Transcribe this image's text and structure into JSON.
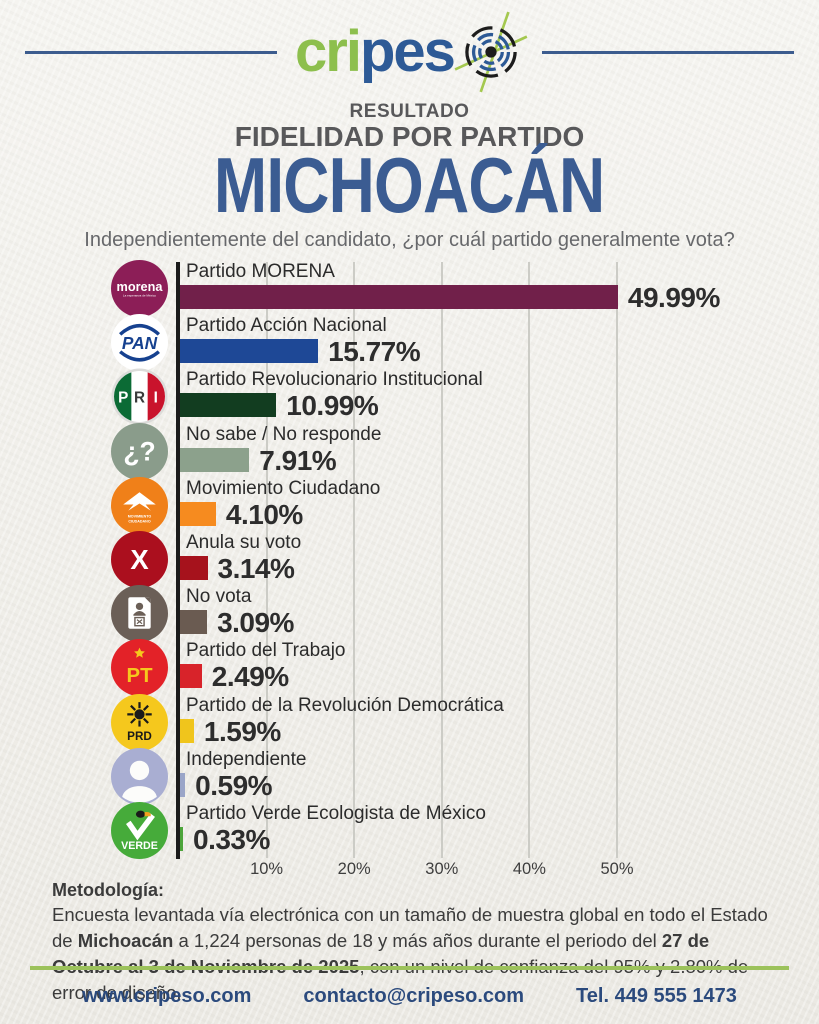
{
  "logo": {
    "part_green": "cri",
    "part_blue": "pes",
    "target_icon": "target-crosshair-icon",
    "accent_green": "#8dbf4d",
    "accent_blue": "#2d5a96"
  },
  "header": {
    "kicker": "RESULTADO",
    "program": "FIDELIDAD POR PARTIDO",
    "region": "MICHOACÁN",
    "question": "Independientemente del candidato, ¿por cuál partido generalmente vota?"
  },
  "chart_data": {
    "type": "bar",
    "orientation": "horizontal",
    "title": "Resultado fidelidad por partido — Michoacán",
    "xlabel": "",
    "ylabel": "",
    "xlim": [
      0,
      50
    ],
    "grid": true,
    "x_tick_labels": [
      "10%",
      "20%",
      "30%",
      "40%",
      "50%"
    ],
    "x_tick_values": [
      10,
      20,
      30,
      40,
      50
    ],
    "categories": [
      "Partido MORENA",
      "Partido Acción Nacional",
      "Partido Revolucionario Institucional",
      "No sabe / No responde",
      "Movimiento Ciudadano",
      "Anula su voto",
      "No vota",
      "Partido del Trabajo",
      "Partido de la Revolución Democrática",
      "Independiente",
      "Partido Verde Ecologista de México"
    ],
    "values": [
      49.99,
      15.77,
      10.99,
      7.91,
      4.1,
      3.14,
      3.09,
      2.49,
      1.59,
      0.59,
      0.33
    ],
    "rows": [
      {
        "label": "Partido MORENA",
        "value": 49.99,
        "value_label": "49.99%",
        "bar_color": "#71204a",
        "icon": "morena",
        "icon_bg": "#8c1e57"
      },
      {
        "label": "Partido Acción Nacional",
        "value": 15.77,
        "value_label": "15.77%",
        "bar_color": "#1e4896",
        "icon": "pan",
        "icon_bg": "#ffffff"
      },
      {
        "label": "Partido Revolucionario Institucional",
        "value": 10.99,
        "value_label": "10.99%",
        "bar_color": "#123d20",
        "icon": "pri",
        "icon_bg": "#ffffff"
      },
      {
        "label": "No sabe / No responde",
        "value": 7.91,
        "value_label": "7.91%",
        "bar_color": "#8ca18c",
        "icon": "nosabe",
        "icon_bg": "#8a9c8b"
      },
      {
        "label": "Movimiento Ciudadano",
        "value": 4.1,
        "value_label": "4.10%",
        "bar_color": "#f68b1f",
        "icon": "mc",
        "icon_bg": "#f08019"
      },
      {
        "label": "Anula su voto",
        "value": 3.14,
        "value_label": "3.14%",
        "bar_color": "#a6121c",
        "icon": "anula",
        "icon_bg": "#ab0f1e"
      },
      {
        "label": "No vota",
        "value": 3.09,
        "value_label": "3.09%",
        "bar_color": "#6a5b51",
        "icon": "novota",
        "icon_bg": "#6b5f57"
      },
      {
        "label": "Partido del Trabajo",
        "value": 2.49,
        "value_label": "2.49%",
        "bar_color": "#d8232a",
        "icon": "pt",
        "icon_bg": "#e32228"
      },
      {
        "label": "Partido de la Revolución Democrática",
        "value": 1.59,
        "value_label": "1.59%",
        "bar_color": "#f0c51c",
        "icon": "prd",
        "icon_bg": "#f5c81d"
      },
      {
        "label": "Independiente",
        "value": 0.59,
        "value_label": "0.59%",
        "bar_color": "#9aa5c8",
        "icon": "independiente",
        "icon_bg": "#a9aed2"
      },
      {
        "label": "Partido Verde Ecologista de México",
        "value": 0.33,
        "value_label": "0.33%",
        "bar_color": "#4da53b",
        "icon": "verde",
        "icon_bg": "#46ab3a"
      }
    ]
  },
  "methodology": {
    "heading": "Metodología:",
    "text_1": "Encuesta levantada vía electrónica con un tamaño de muestra global en todo el Estado de ",
    "bold_1": "Michoacán",
    "text_2": " a 1,224 personas de 18 y más años durante el periodo del ",
    "bold_2": "27 de Octubre al 3 de Noviembre de 2025",
    "text_3": ", con un nivel de confianza del 95% y 2.80% de error de diseño."
  },
  "footer": {
    "website": "www.cripeso.com",
    "email": "contacto@cripeso.com",
    "phone": "Tel. 449 555 1473"
  },
  "colors": {
    "divider_green": "#9cc25b",
    "footer_text": "#2b4a7d",
    "title_blue": "#3b5c92",
    "axis": "#1b1b1b",
    "grid_line": "#ccccc6"
  }
}
